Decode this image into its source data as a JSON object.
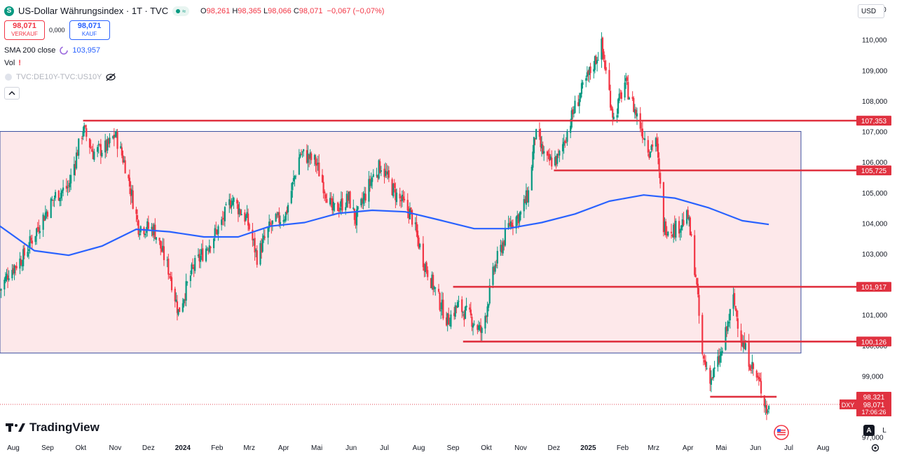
{
  "header": {
    "title": "US-Dollar Währungsindex · 1T · TVC",
    "icon_letter": "S",
    "pill_glyph": "≈",
    "ohlc": [
      {
        "key": "O",
        "value": "98,261"
      },
      {
        "key": "H",
        "value": "98,365"
      },
      {
        "key": "L",
        "value": "98,066"
      },
      {
        "key": "C",
        "value": "98,071"
      }
    ],
    "change": "−0,067 (−0,07%)"
  },
  "trade": {
    "sell_price": "98,071",
    "sell_label": "VERKAUF",
    "spread": "0,000",
    "buy_price": "98,071",
    "buy_label": "KAUF"
  },
  "indicators": {
    "sma_label": "SMA 200 close",
    "sma_value": "103,957",
    "vol_label": "Vol",
    "vol_alert": "!",
    "compare_label": "TVC:DE10Y-TVC:US10Y"
  },
  "branding": {
    "logo_text": "TradingView"
  },
  "currency": {
    "label": "USD"
  },
  "controls": {
    "auto": "A",
    "log": "L"
  },
  "colors": {
    "up": "#089981",
    "down": "#f23645",
    "sma": "#2962ff",
    "zone_fill": "#fde4e6",
    "zone_border": "#3a4fa0",
    "level": "#e03240"
  },
  "chart_data": {
    "type": "candlestick",
    "y_axis_ticks": [
      97,
      98,
      99,
      100,
      101,
      102,
      103,
      104,
      105,
      106,
      107,
      108,
      109,
      110,
      111
    ],
    "y_tick_labels": [
      "97,000",
      "98,000",
      "99,000",
      "100,000",
      "101,000",
      "102,000",
      "103,000",
      "104,000",
      "105,000",
      "106,000",
      "107,000",
      "108,000",
      "109,000",
      "110,000",
      "111,000"
    ],
    "x_axis_labels": [
      "Aug",
      "Sep",
      "Okt",
      "Nov",
      "Dez",
      "2024",
      "Feb",
      "Mrz",
      "Apr",
      "Mai",
      "Jun",
      "Jul",
      "Aug",
      "Sep",
      "Okt",
      "Nov",
      "Dez",
      "2025",
      "Feb",
      "Mrz",
      "Apr",
      "Mai",
      "Jun",
      "Jul",
      "Aug"
    ],
    "x_axis_months": [
      "2023-08",
      "2023-09",
      "2023-10",
      "2023-11",
      "2023-12",
      "2024-01",
      "2024-02",
      "2024-03",
      "2024-04",
      "2024-05",
      "2024-06",
      "2024-07",
      "2024-08",
      "2024-09",
      "2024-10",
      "2024-11",
      "2024-12",
      "2025-01",
      "2025-02",
      "2025-03",
      "2025-04",
      "2025-05",
      "2025-06",
      "2025-07",
      "2025-08"
    ],
    "y_range": [
      96.9,
      111.3
    ],
    "close_path": [
      [
        "2023-07-20",
        101.8
      ],
      [
        "2023-07-28",
        102.4
      ],
      [
        "2023-08-10",
        102.9
      ],
      [
        "2023-08-25",
        104.0
      ],
      [
        "2023-09-08",
        104.9
      ],
      [
        "2023-09-20",
        105.2
      ],
      [
        "2023-10-03",
        107.1
      ],
      [
        "2023-10-12",
        106.3
      ],
      [
        "2023-10-25",
        106.5
      ],
      [
        "2023-11-01",
        106.9
      ],
      [
        "2023-11-10",
        105.9
      ],
      [
        "2023-11-22",
        103.9
      ],
      [
        "2023-12-06",
        103.8
      ],
      [
        "2023-12-20",
        102.4
      ],
      [
        "2023-12-28",
        101.1
      ],
      [
        "2024-01-10",
        102.5
      ],
      [
        "2024-01-24",
        103.3
      ],
      [
        "2024-02-05",
        104.0
      ],
      [
        "2024-02-14",
        104.8
      ],
      [
        "2024-02-28",
        104.1
      ],
      [
        "2024-03-08",
        102.9
      ],
      [
        "2024-03-20",
        103.9
      ],
      [
        "2024-04-03",
        104.3
      ],
      [
        "2024-04-16",
        106.3
      ],
      [
        "2024-04-30",
        106.0
      ],
      [
        "2024-05-15",
        104.4
      ],
      [
        "2024-05-30",
        104.8
      ],
      [
        "2024-06-05",
        104.1
      ],
      [
        "2024-06-20",
        105.5
      ],
      [
        "2024-06-28",
        105.9
      ],
      [
        "2024-07-10",
        105.0
      ],
      [
        "2024-07-25",
        104.3
      ],
      [
        "2024-08-05",
        102.8
      ],
      [
        "2024-08-20",
        101.4
      ],
      [
        "2024-08-27",
        100.8
      ],
      [
        "2024-09-05",
        101.3
      ],
      [
        "2024-09-17",
        100.9
      ],
      [
        "2024-09-27",
        100.4
      ],
      [
        "2024-10-08",
        102.5
      ],
      [
        "2024-10-22",
        104.0
      ],
      [
        "2024-11-01",
        104.3
      ],
      [
        "2024-11-08",
        105.0
      ],
      [
        "2024-11-14",
        106.9
      ],
      [
        "2024-11-25",
        106.0
      ],
      [
        "2024-12-05",
        106.1
      ],
      [
        "2024-12-20",
        107.8
      ],
      [
        "2025-01-02",
        108.9
      ],
      [
        "2025-01-13",
        109.8
      ],
      [
        "2025-01-24",
        107.4
      ],
      [
        "2025-02-03",
        108.6
      ],
      [
        "2025-02-12",
        107.7
      ],
      [
        "2025-02-25",
        106.4
      ],
      [
        "2025-03-03",
        106.8
      ],
      [
        "2025-03-10",
        103.9
      ],
      [
        "2025-03-20",
        103.8
      ],
      [
        "2025-04-01",
        104.2
      ],
      [
        "2025-04-08",
        102.3
      ],
      [
        "2025-04-14",
        99.6
      ],
      [
        "2025-04-22",
        98.9
      ],
      [
        "2025-05-01",
        99.7
      ],
      [
        "2025-05-12",
        101.5
      ],
      [
        "2025-05-20",
        100.1
      ],
      [
        "2025-05-30",
        99.2
      ],
      [
        "2025-06-05",
        98.7
      ],
      [
        "2025-06-12",
        97.8
      ],
      [
        "2025-06-13",
        98.07
      ]
    ],
    "sma_200_path": [
      [
        "2023-07-20",
        103.9
      ],
      [
        "2023-08-20",
        103.1
      ],
      [
        "2023-09-20",
        102.95
      ],
      [
        "2023-10-20",
        103.25
      ],
      [
        "2023-11-20",
        103.8
      ],
      [
        "2023-12-20",
        103.72
      ],
      [
        "2024-01-20",
        103.55
      ],
      [
        "2024-02-20",
        103.55
      ],
      [
        "2024-03-20",
        103.9
      ],
      [
        "2024-04-20",
        104.02
      ],
      [
        "2024-05-20",
        104.32
      ],
      [
        "2024-06-20",
        104.42
      ],
      [
        "2024-07-20",
        104.37
      ],
      [
        "2024-08-20",
        104.1
      ],
      [
        "2024-09-20",
        103.82
      ],
      [
        "2024-10-20",
        103.82
      ],
      [
        "2024-11-20",
        104.02
      ],
      [
        "2024-12-20",
        104.3
      ],
      [
        "2025-01-20",
        104.72
      ],
      [
        "2025-02-20",
        104.92
      ],
      [
        "2025-03-20",
        104.82
      ],
      [
        "2025-04-20",
        104.5
      ],
      [
        "2025-05-20",
        104.08
      ],
      [
        "2025-06-13",
        103.957
      ]
    ],
    "zone": {
      "from": "2023-07-20",
      "to": "2025-07-12",
      "top": 107.0,
      "bottom": 99.75
    },
    "levels": [
      {
        "value": 107.353,
        "label": "107,353",
        "from": "2023-10-03"
      },
      {
        "value": 105.725,
        "label": "105,725",
        "from": "2024-12-01"
      },
      {
        "value": 101.917,
        "label": "101,917",
        "from": "2024-09-01"
      },
      {
        "value": 100.126,
        "label": "100,126",
        "from": "2024-09-10"
      },
      {
        "value": 98.321,
        "label": "98,321",
        "from": "2025-04-21",
        "to": "2025-06-20"
      }
    ],
    "last_price": {
      "symbol": "DXY",
      "value": 98.071,
      "label": "98,071",
      "countdown": "17:06:26"
    }
  }
}
